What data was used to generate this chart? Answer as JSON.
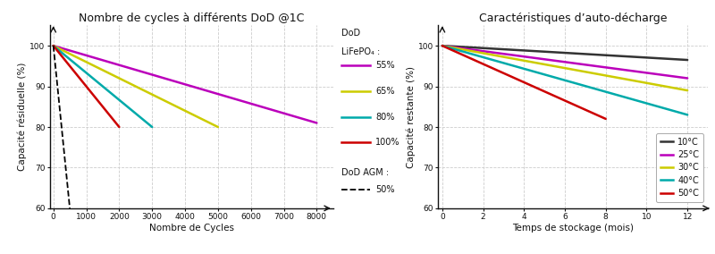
{
  "chart1": {
    "title": "Nombre de cycles à différents DoD @1C",
    "xlabel": "Nombre de Cycles",
    "ylabel": "Capacité résiduelle (%)",
    "ylim": [
      60,
      105
    ],
    "xlim": [
      -100,
      8500
    ],
    "xticks": [
      0,
      1000,
      2000,
      3000,
      4000,
      5000,
      6000,
      7000,
      8000
    ],
    "yticks": [
      60,
      70,
      80,
      90,
      100
    ],
    "lines": [
      {
        "label": "55%",
        "color": "#bb00bb",
        "x": [
          0,
          8000
        ],
        "y": [
          100,
          81
        ]
      },
      {
        "label": "65%",
        "color": "#cccc00",
        "x": [
          0,
          5000
        ],
        "y": [
          100,
          80
        ]
      },
      {
        "label": "80%",
        "color": "#00aaaa",
        "x": [
          0,
          3000
        ],
        "y": [
          100,
          80
        ]
      },
      {
        "label": "100%",
        "color": "#cc0000",
        "x": [
          0,
          2000
        ],
        "y": [
          100,
          80
        ]
      }
    ],
    "agm_line": {
      "label": "50%",
      "color": "#000000",
      "x": [
        0,
        500
      ],
      "y": [
        100,
        60
      ],
      "linestyle": "--"
    },
    "legend_dod_line1": "DoD",
    "legend_dod_line2": "LiFePO₄ :",
    "legend_agm": "DoD AGM :"
  },
  "chart2": {
    "title": "Caractéristiques d’auto-décharge",
    "xlabel": "Temps de stockage (mois)",
    "ylabel": "Capacité restante (%)",
    "ylim": [
      60,
      105
    ],
    "xlim": [
      -0.2,
      13
    ],
    "xticks": [
      0,
      2,
      4,
      6,
      8,
      10,
      12
    ],
    "yticks": [
      60,
      70,
      80,
      90,
      100
    ],
    "lines": [
      {
        "label": "10°C",
        "color": "#333333",
        "x": [
          0,
          12
        ],
        "y": [
          100,
          96.5
        ]
      },
      {
        "label": "25°C",
        "color": "#bb00bb",
        "x": [
          0,
          12
        ],
        "y": [
          100,
          92
        ]
      },
      {
        "label": "30°C",
        "color": "#cccc00",
        "x": [
          0,
          12
        ],
        "y": [
          100,
          89
        ]
      },
      {
        "label": "40°C",
        "color": "#00aaaa",
        "x": [
          0,
          12
        ],
        "y": [
          100,
          83
        ]
      },
      {
        "label": "50°C",
        "color": "#cc0000",
        "x": [
          0,
          8
        ],
        "y": [
          100,
          82
        ]
      }
    ]
  },
  "bg_color": "#ffffff",
  "grid_color": "#cccccc",
  "font_color": "#111111",
  "tick_fontsize": 6.5,
  "label_fontsize": 7.5,
  "title_fontsize": 9,
  "line_width": 1.8
}
